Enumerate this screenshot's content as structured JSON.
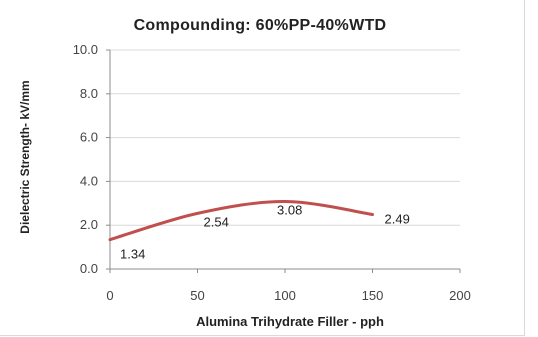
{
  "chart_data": {
    "type": "line",
    "title": "Compounding: 60%PP-40%WTD",
    "xlabel": "Alumina Trihydrate Filler - pph",
    "ylabel": "Dielectric Strength- kV/mm",
    "xlim": [
      0,
      200
    ],
    "ylim": [
      0.0,
      10.0
    ],
    "x_ticks": [
      0,
      50,
      100,
      150,
      200
    ],
    "y_ticks": [
      0.0,
      2.0,
      4.0,
      6.0,
      8.0,
      10.0
    ],
    "x_tick_labels": [
      "0",
      "50",
      "100",
      "150",
      "200"
    ],
    "y_tick_labels": [
      "0.0",
      "2.0",
      "4.0",
      "6.0",
      "8.0",
      "10.0"
    ],
    "grid": "horizontal",
    "legend": "none",
    "line_color": "#c0504d",
    "series": [
      {
        "points": [
          {
            "x": 0,
            "y": 1.34,
            "label": "1.34"
          },
          {
            "x": 50,
            "y": 2.54,
            "label": "2.54"
          },
          {
            "x": 100,
            "y": 3.08,
            "label": "3.08"
          },
          {
            "x": 150,
            "y": 2.49,
            "label": "2.49"
          }
        ]
      }
    ]
  }
}
